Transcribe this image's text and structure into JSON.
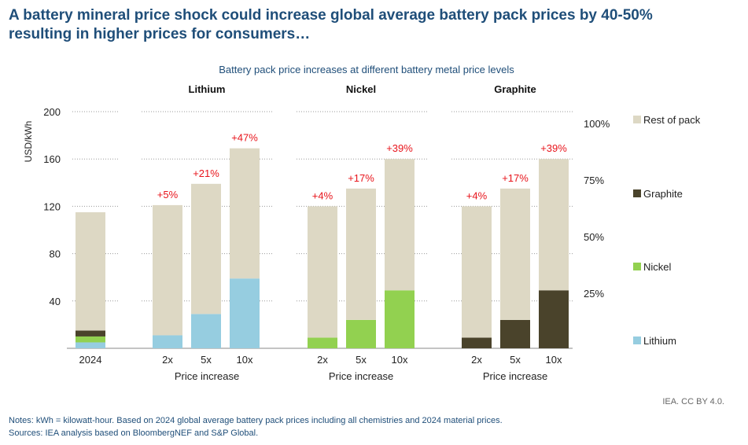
{
  "headline": {
    "line1": "A battery mineral price shock could increase global average battery pack prices by 40-50%",
    "line2": "resulting in higher prices for consumers…"
  },
  "chart_data": {
    "type": "bar",
    "stacked": true,
    "subtitle": "Battery pack price increases at different battery metal price levels",
    "ylabel": "USD/kWh",
    "ylim": [
      0,
      200
    ],
    "y_ticks": [
      40,
      80,
      120,
      160,
      200
    ],
    "right_axis_ticks": [
      "100%",
      "75%",
      "50%",
      "25%"
    ],
    "colors": {
      "Lithium": "#96cde0",
      "Nickel": "#92d150",
      "Graphite": "#4a432b",
      "Rest of pack": "#ddd8c4"
    },
    "legend": {
      "placement": "right",
      "entries": [
        "Rest of pack",
        "Graphite",
        "Nickel",
        "Lithium"
      ]
    },
    "groups": [
      {
        "title": "",
        "xlabel": "",
        "bars": [
          {
            "category": "2024",
            "total": 115,
            "segments": {
              "Lithium": 5,
              "Nickel": 5,
              "Graphite": 5
            },
            "label": ""
          }
        ]
      },
      {
        "title": "Lithium",
        "xlabel": "Price increase",
        "bars": [
          {
            "category": "2x",
            "total": 121,
            "segments": {
              "Lithium": 11
            },
            "label": "+5%"
          },
          {
            "category": "5x",
            "total": 139,
            "segments": {
              "Lithium": 29
            },
            "label": "+21%"
          },
          {
            "category": "10x",
            "total": 169,
            "segments": {
              "Lithium": 59
            },
            "label": "+47%"
          }
        ]
      },
      {
        "title": "Nickel",
        "xlabel": "Price increase",
        "bars": [
          {
            "category": "2x",
            "total": 120,
            "segments": {
              "Nickel": 9
            },
            "label": "+4%"
          },
          {
            "category": "5x",
            "total": 135,
            "segments": {
              "Nickel": 24
            },
            "label": "+17%"
          },
          {
            "category": "10x",
            "total": 160,
            "segments": {
              "Nickel": 49
            },
            "label": "+39%"
          }
        ]
      },
      {
        "title": "Graphite",
        "xlabel": "Price increase",
        "bars": [
          {
            "category": "2x",
            "total": 120,
            "segments": {
              "Graphite": 9
            },
            "label": "+4%"
          },
          {
            "category": "5x",
            "total": 135,
            "segments": {
              "Graphite": 24
            },
            "label": "+17%"
          },
          {
            "category": "10x",
            "total": 160,
            "segments": {
              "Graphite": 49
            },
            "label": "+39%"
          }
        ]
      }
    ]
  },
  "notes": {
    "line1": "Notes: kWh = kilowatt-hour. Based on 2024 global average battery pack prices including all chemistries and 2024 material prices.",
    "line2": "Sources: IEA analysis based on BloombergNEF and S&P Global."
  },
  "credit": "IEA. CC BY 4.0."
}
